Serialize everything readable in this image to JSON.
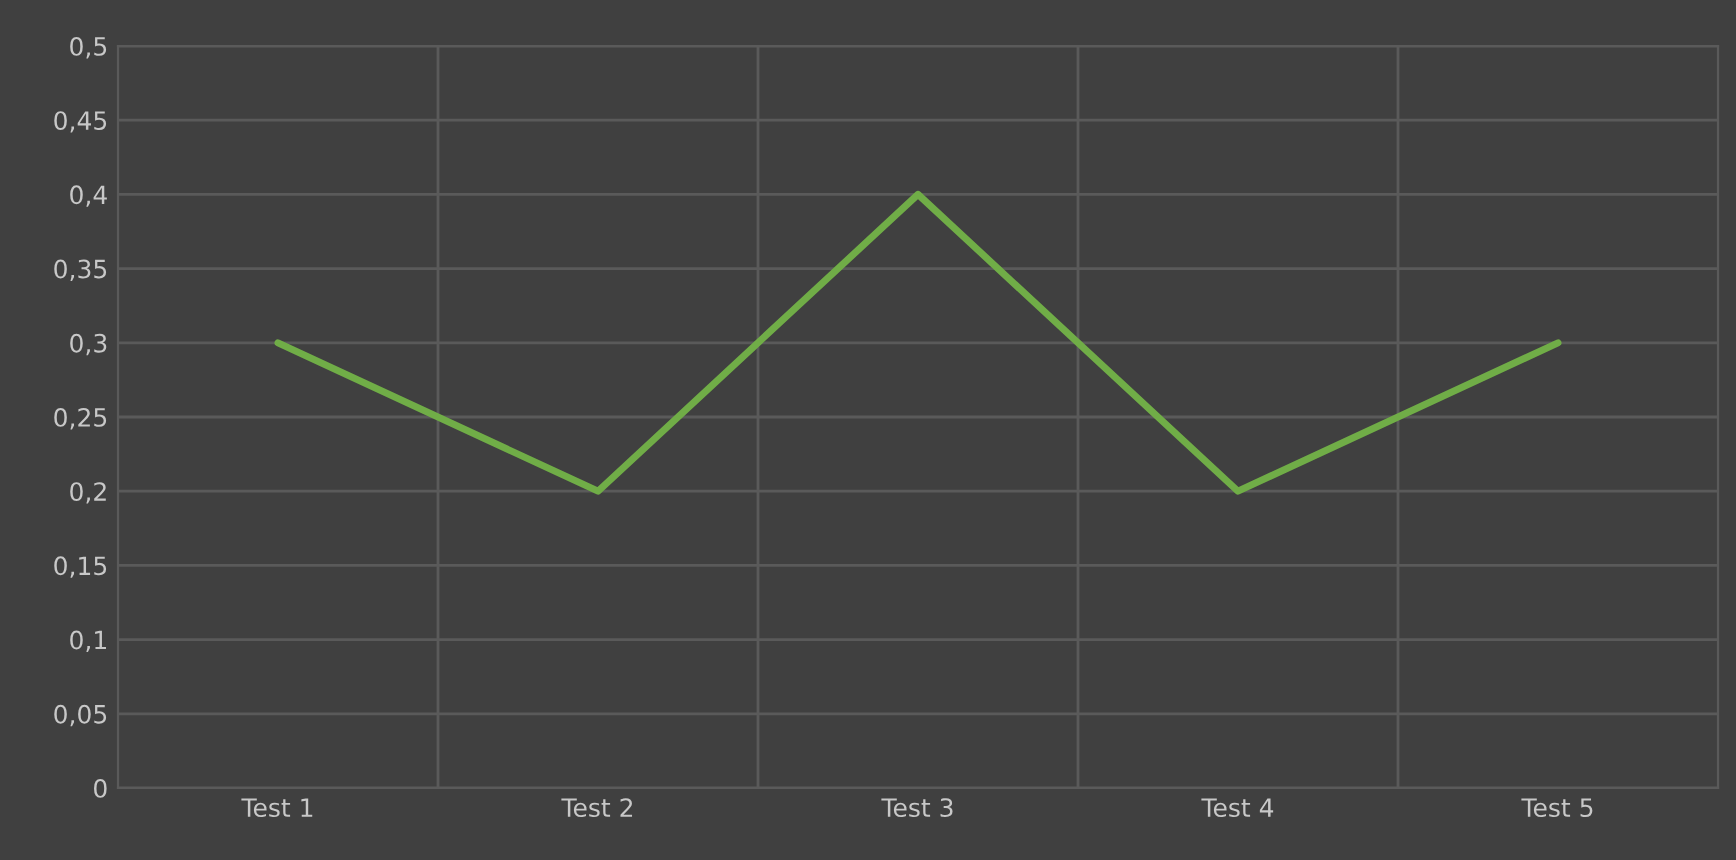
{
  "chart_data": {
    "type": "line",
    "categories": [
      "Test 1",
      "Test 2",
      "Test 3",
      "Test 4",
      "Test 5"
    ],
    "series": [
      {
        "color": "#70ad47",
        "values": [
          0.3,
          0.2,
          0.4,
          0.2,
          0.3
        ]
      }
    ],
    "ylim": [
      0,
      0.5
    ],
    "yticks": [
      0,
      {
        "value": 0.05,
        "label": "0,05"
      },
      {
        "value": 0.1,
        "label": "0,1"
      },
      {
        "value": 0.15,
        "label": "0,15"
      },
      {
        "value": 0.2,
        "label": "0,2"
      },
      {
        "value": 0.25,
        "label": "0,25"
      },
      {
        "value": 0.3,
        "label": "0,3"
      },
      {
        "value": 0.35,
        "label": "0,35"
      },
      {
        "value": 0.4,
        "label": "0,4"
      },
      {
        "value": 0.45,
        "label": "0,45"
      },
      {
        "value": 0.5,
        "label": "0,5"
      }
    ],
    "grid": true,
    "marker": "none",
    "line_style": "solid"
  }
}
